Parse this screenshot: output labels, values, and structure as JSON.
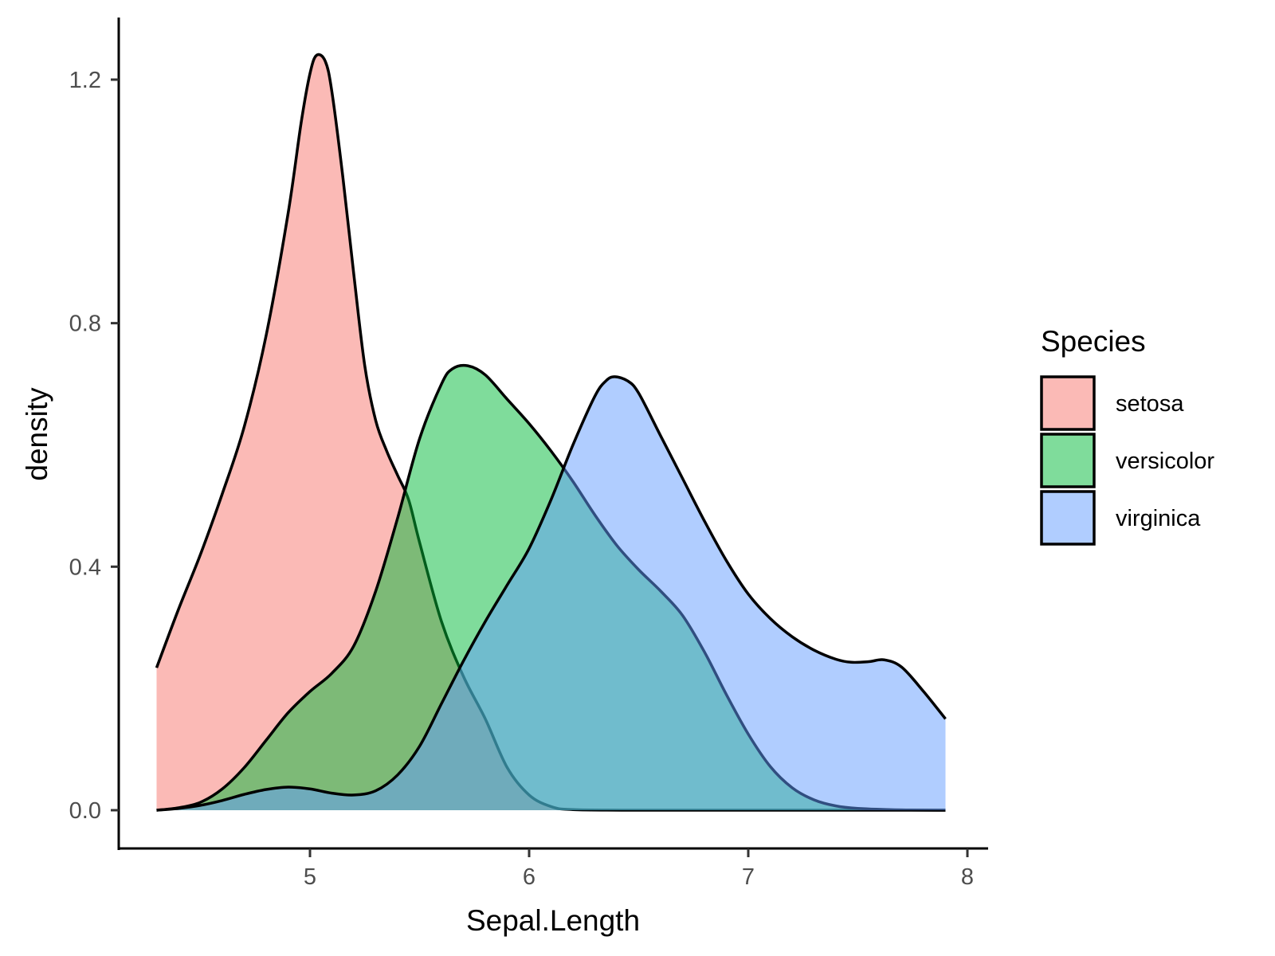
{
  "chart_data": {
    "type": "area",
    "subtype": "density",
    "title": "",
    "xlabel": "Sepal.Length",
    "ylabel": "density",
    "xlim": [
      4.3,
      7.9
    ],
    "ylim": [
      0.0,
      1.25
    ],
    "x_ticks": [
      5,
      6,
      7,
      8
    ],
    "x_tick_labels": [
      "5",
      "6",
      "7",
      "8"
    ],
    "y_ticks": [
      0.0,
      0.4,
      0.8,
      1.2
    ],
    "y_tick_labels": [
      "0.0",
      "0.4",
      "0.8",
      "1.2"
    ],
    "grid": false,
    "legend": {
      "title": "Species",
      "position": "right"
    },
    "series": [
      {
        "name": "setosa",
        "color": "#F8766D",
        "fill_opacity": 0.5,
        "x": [
          4.3,
          4.4,
          4.5,
          4.6,
          4.7,
          4.8,
          4.9,
          4.96,
          5.0,
          5.03,
          5.07,
          5.1,
          5.15,
          5.2,
          5.25,
          5.3,
          5.35,
          5.4,
          5.45,
          5.5,
          5.6,
          5.7,
          5.8,
          5.9,
          6.0,
          6.1,
          6.2,
          6.5,
          7.0,
          7.5,
          7.9
        ],
        "y": [
          0.234,
          0.33,
          0.42,
          0.52,
          0.63,
          0.78,
          0.98,
          1.13,
          1.21,
          1.24,
          1.23,
          1.18,
          1.04,
          0.88,
          0.73,
          0.64,
          0.59,
          0.55,
          0.51,
          0.44,
          0.31,
          0.22,
          0.15,
          0.07,
          0.025,
          0.006,
          0.001,
          0.0,
          0.0,
          0.0,
          0.0
        ]
      },
      {
        "name": "versicolor",
        "color": "#00BA38",
        "fill_opacity": 0.5,
        "x": [
          4.3,
          4.4,
          4.5,
          4.6,
          4.7,
          4.8,
          4.9,
          5.0,
          5.1,
          5.2,
          5.3,
          5.4,
          5.5,
          5.6,
          5.65,
          5.72,
          5.8,
          5.9,
          6.0,
          6.1,
          6.2,
          6.3,
          6.4,
          6.5,
          6.6,
          6.7,
          6.8,
          6.9,
          7.0,
          7.1,
          7.2,
          7.3,
          7.4,
          7.5,
          7.7,
          7.9
        ],
        "y": [
          0.0,
          0.004,
          0.013,
          0.035,
          0.07,
          0.115,
          0.16,
          0.195,
          0.225,
          0.27,
          0.36,
          0.48,
          0.61,
          0.7,
          0.725,
          0.73,
          0.715,
          0.675,
          0.635,
          0.59,
          0.54,
          0.485,
          0.435,
          0.395,
          0.36,
          0.32,
          0.26,
          0.19,
          0.125,
          0.072,
          0.037,
          0.017,
          0.007,
          0.003,
          0.0005,
          0.0
        ]
      },
      {
        "name": "virginica",
        "color": "#619CFF",
        "fill_opacity": 0.5,
        "x": [
          4.3,
          4.4,
          4.5,
          4.6,
          4.7,
          4.8,
          4.9,
          5.0,
          5.1,
          5.2,
          5.3,
          5.4,
          5.5,
          5.6,
          5.7,
          5.8,
          5.9,
          6.0,
          6.1,
          6.2,
          6.3,
          6.35,
          6.39,
          6.45,
          6.5,
          6.6,
          6.7,
          6.8,
          6.9,
          7.0,
          7.1,
          7.2,
          7.3,
          7.4,
          7.47,
          7.55,
          7.62,
          7.7,
          7.8,
          7.9
        ],
        "y": [
          0.0,
          0.003,
          0.008,
          0.016,
          0.026,
          0.034,
          0.038,
          0.035,
          0.028,
          0.025,
          0.032,
          0.058,
          0.105,
          0.175,
          0.245,
          0.31,
          0.37,
          0.43,
          0.51,
          0.6,
          0.68,
          0.705,
          0.712,
          0.705,
          0.685,
          0.615,
          0.545,
          0.475,
          0.41,
          0.355,
          0.315,
          0.285,
          0.263,
          0.248,
          0.243,
          0.244,
          0.247,
          0.235,
          0.195,
          0.15
        ]
      }
    ]
  },
  "legend": {
    "title": "Species",
    "items": [
      {
        "label": "setosa",
        "color": "#F8766D"
      },
      {
        "label": "versicolor",
        "color": "#00BA38"
      },
      {
        "label": "virginica",
        "color": "#619CFF"
      }
    ]
  },
  "axes": {
    "x_title": "Sepal.Length",
    "y_title": "density"
  }
}
